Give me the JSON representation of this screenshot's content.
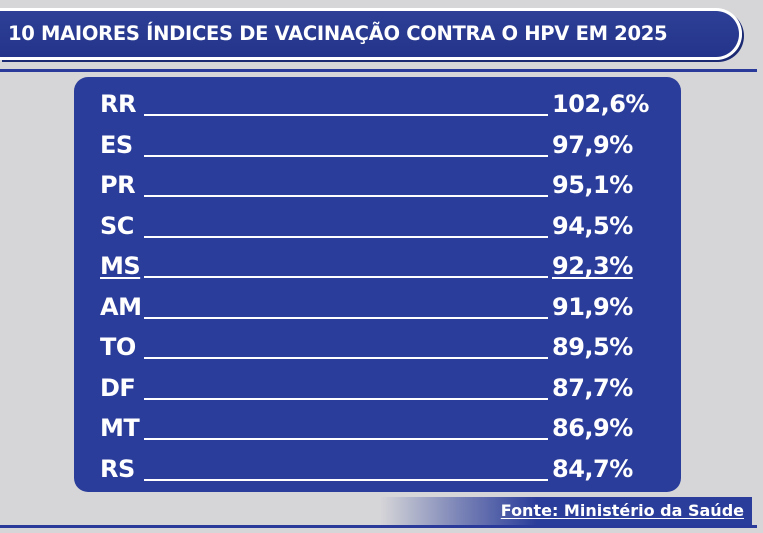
{
  "chart_data": {
    "type": "table",
    "title": "10 MAIORES ÍNDICES DE VACINAÇÃO CONTRA O HPV EM 2025",
    "categories": [
      "RR",
      "ES",
      "PR",
      "SC",
      "MS",
      "AM",
      "TO",
      "DF",
      "MT",
      "RS"
    ],
    "values": [
      102.6,
      97.9,
      95.1,
      94.5,
      92.3,
      91.9,
      89.5,
      87.7,
      86.9,
      84.7
    ],
    "value_labels": [
      "102,6%",
      "97,9%",
      "95,1%",
      "94,5%",
      "92,3%",
      "91,9%",
      "89,5%",
      "87,7%",
      "86,9%",
      "84,7%"
    ],
    "highlighted": "MS",
    "source": "Fonte: Ministério da Saúde"
  },
  "colors": {
    "background": "#d6d6d8",
    "panel": "#2b3d9a",
    "text": "#ffffff"
  }
}
